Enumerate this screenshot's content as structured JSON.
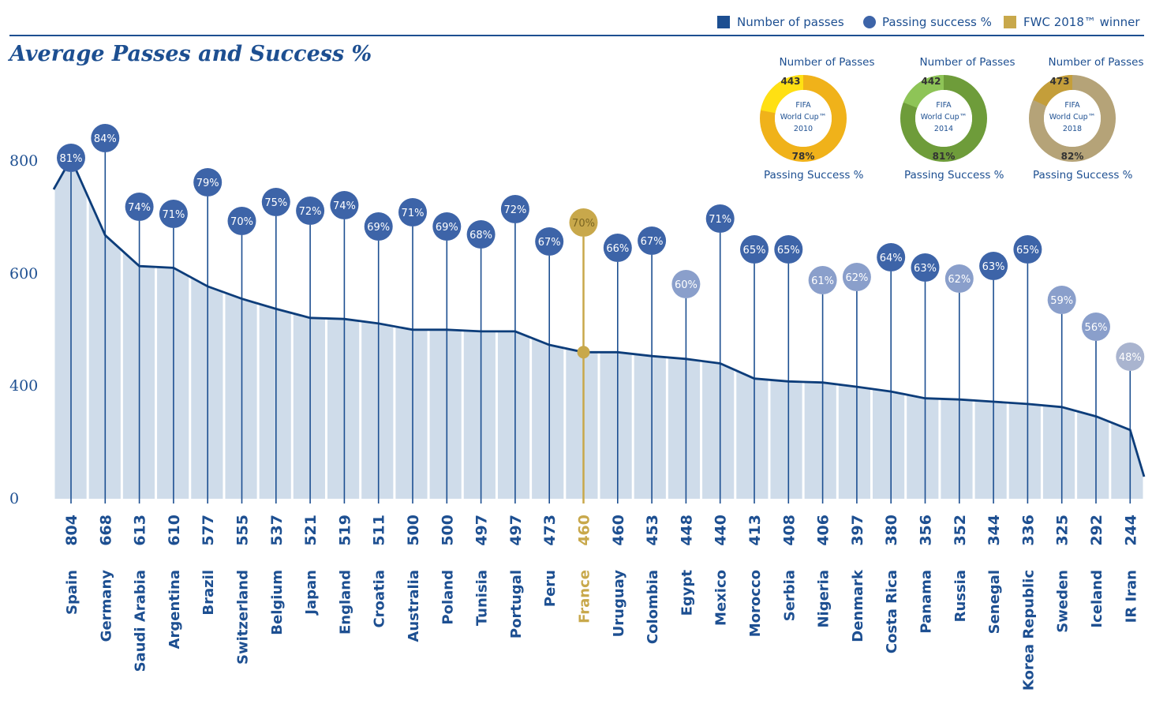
{
  "legend": [
    {
      "label": "Number of passes",
      "color": "#1d4f91",
      "marker": "square"
    },
    {
      "label": "Passing success %",
      "color": "#3d64a8",
      "marker": "circle"
    },
    {
      "label": "FWC 2018™ winner",
      "color": "#c8a84b",
      "marker": "square"
    }
  ],
  "title": "Average Passes and Success %",
  "colors": {
    "primary": "#1d4f91",
    "line": "#0d3d7a",
    "area": "#cfdcea",
    "bubble_dark": "#3d64a8",
    "bubble_light": "#8a9fcb",
    "winner": "#c8a84b",
    "grey_bubble": "#a9b4cf"
  },
  "donuts": [
    {
      "top_label": "Number of Passes",
      "value": "443",
      "center": [
        "FIFA",
        "World Cup™",
        "2010"
      ],
      "percent": "78%",
      "bottom_label": "Passing Success %",
      "color": "#f0b21a",
      "small_color": "#ffe013",
      "share": 0.78
    },
    {
      "top_label": "Number of Passes",
      "value": "442",
      "center": [
        "FIFA",
        "World Cup™",
        "2014"
      ],
      "percent": "81%",
      "bottom_label": "Passing Success %",
      "color": "#6e9c3a",
      "small_color": "#8ec457",
      "share": 0.81
    },
    {
      "top_label": "Number of Passes",
      "value": "473",
      "center": [
        "FIFA",
        "World Cup™",
        "2018"
      ],
      "percent": "82%",
      "bottom_label": "Passing Success %",
      "color": "#b5a378",
      "small_color": "#c49e3a",
      "share": 0.82
    }
  ],
  "chart_data": {
    "type": "line",
    "title": "Average Passes and Success %",
    "ylim": [
      0,
      800
    ],
    "yticks": [
      0,
      400,
      600,
      800
    ],
    "categories": [
      "Spain",
      "Germany",
      "Saudi Arabia",
      "Argentina",
      "Brazil",
      "Switzerland",
      "Belgium",
      "Japan",
      "England",
      "Croatia",
      "Australia",
      "Poland",
      "Tunisia",
      "Portugal",
      "Peru",
      "France",
      "Uruguay",
      "Colombia",
      "Egypt",
      "Mexico",
      "Morocco",
      "Serbia",
      "Nigeria",
      "Denmark",
      "Costa Rica",
      "Panama",
      "Russia",
      "Senegal",
      "Korea Republic",
      "Sweden",
      "Iceland",
      "IR Iran"
    ],
    "series": [
      {
        "name": "Number of passes",
        "values": [
          804,
          668,
          613,
          610,
          577,
          555,
          537,
          521,
          519,
          511,
          500,
          500,
          497,
          497,
          473,
          460,
          460,
          453,
          448,
          440,
          413,
          408,
          406,
          397,
          380,
          356,
          352,
          344,
          336,
          325,
          292,
          244
        ]
      },
      {
        "name": "Passing success %",
        "values": [
          81,
          84,
          74,
          71,
          79,
          70,
          75,
          72,
          74,
          69,
          71,
          69,
          68,
          72,
          67,
          70,
          66,
          67,
          60,
          71,
          65,
          65,
          61,
          62,
          64,
          63,
          62,
          63,
          65,
          59,
          56,
          48
        ]
      }
    ],
    "highlight": "France"
  }
}
